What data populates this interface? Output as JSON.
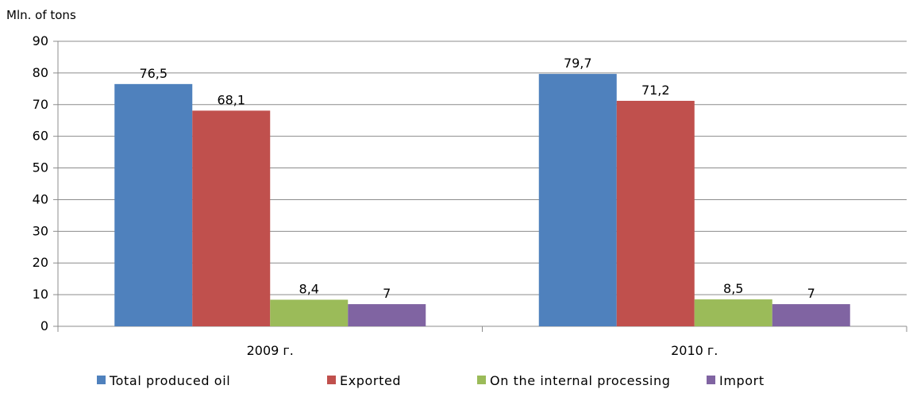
{
  "chart_data": {
    "type": "bar",
    "ylabel": "Mln. of tons",
    "categories": [
      "2009 г.",
      "2010 г."
    ],
    "ylim": [
      0,
      90
    ],
    "yticks": [
      0,
      10,
      20,
      30,
      40,
      50,
      60,
      70,
      80,
      90
    ],
    "ytick_labels": [
      "0",
      "10",
      "20",
      "30",
      "40",
      "50",
      "60",
      "70",
      "80",
      "90"
    ],
    "grid": true,
    "legend_position": "bottom",
    "series": [
      {
        "name": "Total produced oil",
        "color": "#4F81BD",
        "values": [
          76.5,
          79.7
        ],
        "labels": [
          "76,5",
          "79,7"
        ]
      },
      {
        "name": "Exported",
        "color": "#C0504D",
        "values": [
          68.1,
          71.2
        ],
        "labels": [
          "68,1",
          "71,2"
        ]
      },
      {
        "name": "On the internal processing",
        "color": "#9BBB59",
        "values": [
          8.4,
          8.5
        ],
        "labels": [
          "8,4",
          "8,5"
        ]
      },
      {
        "name": "Import",
        "color": "#8064A2",
        "values": [
          7,
          7
        ],
        "labels": [
          "7",
          "7"
        ]
      }
    ]
  }
}
